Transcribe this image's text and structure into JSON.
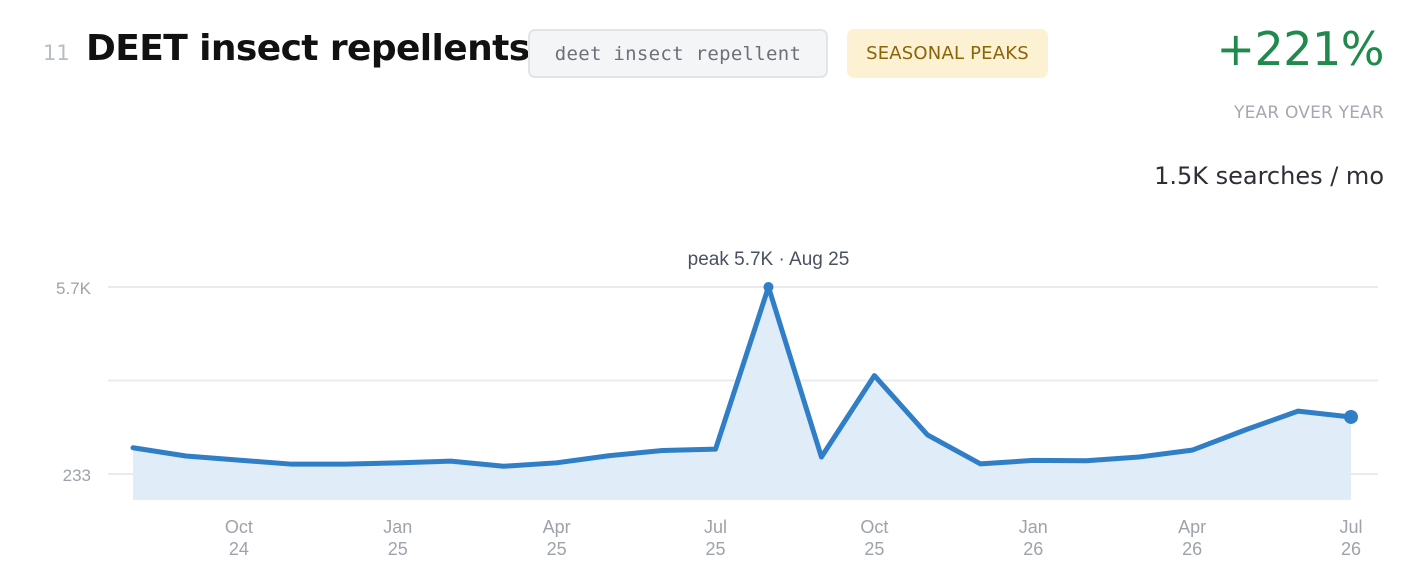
{
  "header": {
    "rank": "11",
    "title": "DEET insect repellents",
    "keyword": "deet insect repellent",
    "badge": "SEASONAL PEAKS",
    "growth": "+221%",
    "growth_label": "YEAR OVER YEAR",
    "volume": "1.5K searches / mo"
  },
  "colors": {
    "line": "#2f7ec6",
    "area": "#e0ecf7",
    "growth": "#1f8a4c",
    "badge_bg": "#fcf1d3",
    "badge_text": "#8a6508"
  },
  "chart_data": {
    "type": "area",
    "y_tick_labels": [
      "5.7K",
      "233"
    ],
    "y_ticks": [
      5700,
      233
    ],
    "ylim": [
      -500,
      5700
    ],
    "grid": true,
    "x": [
      "2024-08",
      "2024-09",
      "2024-10",
      "2024-11",
      "2024-12",
      "2025-01",
      "2025-02",
      "2025-03",
      "2025-04",
      "2025-05",
      "2025-06",
      "2025-07",
      "2025-08",
      "2025-09",
      "2025-10",
      "2025-11",
      "2025-12",
      "2026-01",
      "2026-02",
      "2026-03",
      "2026-04",
      "2026-05",
      "2026-06",
      "2026-07"
    ],
    "values": [
      1000,
      760,
      640,
      520,
      520,
      560,
      610,
      460,
      560,
      770,
      920,
      960,
      5700,
      730,
      3110,
      1380,
      530,
      630,
      620,
      730,
      930,
      1520,
      2070,
      1900
    ],
    "x_tick_labels": [
      {
        "month": "Oct",
        "year": "24"
      },
      {
        "month": "Jan",
        "year": "25"
      },
      {
        "month": "Apr",
        "year": "25"
      },
      {
        "month": "Jul",
        "year": "25"
      },
      {
        "month": "Oct",
        "year": "25"
      },
      {
        "month": "Jan",
        "year": "26"
      },
      {
        "month": "Apr",
        "year": "26"
      },
      {
        "month": "Jul",
        "year": "26"
      }
    ],
    "x_tick_indices": [
      2,
      5,
      8,
      11,
      14,
      17,
      20,
      23
    ],
    "annotation": {
      "text": "peak 5.7K · Aug 25",
      "index": 12
    }
  }
}
